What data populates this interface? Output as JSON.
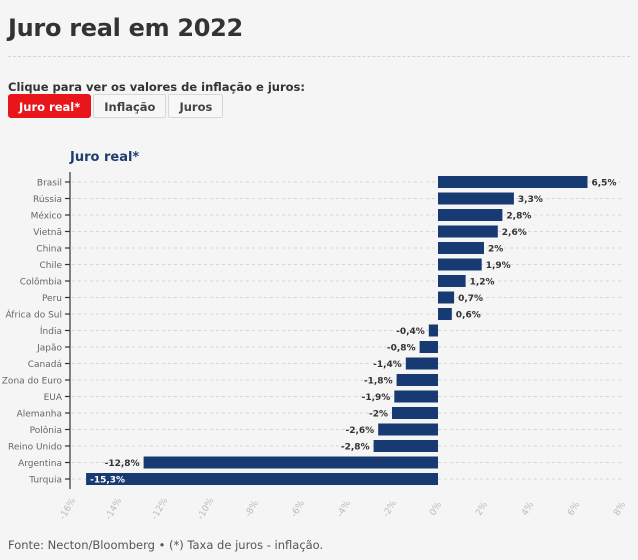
{
  "header": {
    "title": "Juro real em 2022",
    "prompt": "Clique para ver os valores de inflação e juros:"
  },
  "buttons": [
    {
      "label": "Juro real*",
      "active": true
    },
    {
      "label": "Inflação",
      "active": false
    },
    {
      "label": "Juros",
      "active": false
    }
  ],
  "colors": {
    "bar": "#173a73",
    "active_button": "#e8151b",
    "chart_title": "#1f3d6e"
  },
  "footer": {
    "source": "Fonte: Necton/Bloomberg • (*) Taxa de juros - inflação."
  },
  "chart_data": {
    "type": "bar",
    "orientation": "horizontal",
    "title": "Juro real*",
    "xlabel": "",
    "ylabel": "",
    "xlim": [
      -16,
      8
    ],
    "x_ticks": [
      -16,
      -14,
      -12,
      -10,
      -8,
      -6,
      -4,
      -2,
      0,
      2,
      4,
      6,
      8
    ],
    "x_tick_labels": [
      "-16%",
      "-14%",
      "-12%",
      "-10%",
      "-8%",
      "-6%",
      "-4%",
      "-2%",
      "0%",
      "2%",
      "4%",
      "6%",
      "8%"
    ],
    "grid": true,
    "categories": [
      "Brasil",
      "Rússia",
      "México",
      "Vietnã",
      "China",
      "Chile",
      "Colômbia",
      "Peru",
      "África do Sul",
      "Índia",
      "Japão",
      "Canadá",
      "Zona do Euro",
      "EUA",
      "Alemanha",
      "Polônia",
      "Reino Unido",
      "Argentina",
      "Turquia"
    ],
    "values": [
      6.5,
      3.3,
      2.8,
      2.6,
      2,
      1.9,
      1.2,
      0.7,
      0.6,
      -0.4,
      -0.8,
      -1.4,
      -1.8,
      -1.9,
      -2,
      -2.6,
      -2.8,
      -12.8,
      -15.3
    ],
    "value_labels": [
      "6,5%",
      "3,3%",
      "2,8%",
      "2,6%",
      "2%",
      "1,9%",
      "1,2%",
      "0,7%",
      "0,6%",
      "-0,4%",
      "-0,8%",
      "-1,4%",
      "-1,8%",
      "-1,9%",
      "-2%",
      "-2,6%",
      "-2,8%",
      "-12,8%",
      "-15,3%"
    ]
  }
}
